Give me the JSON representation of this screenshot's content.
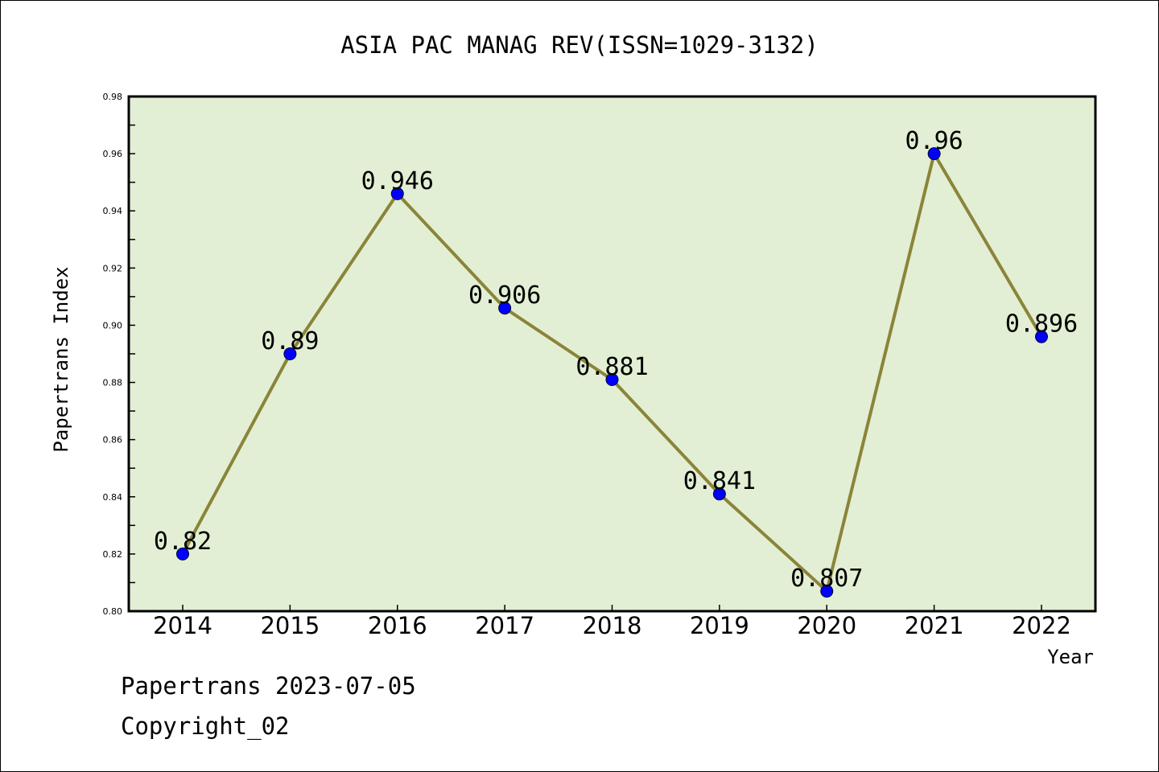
{
  "chart_data": {
    "type": "line",
    "title": "ASIA PAC MANAG REV(ISSN=1029-3132)",
    "xlabel": "Year",
    "ylabel": "Papertrans Index",
    "categories": [
      "2014",
      "2015",
      "2016",
      "2017",
      "2018",
      "2019",
      "2020",
      "2021",
      "2022"
    ],
    "series": [
      {
        "values": [
          0.82,
          0.89,
          0.946,
          0.906,
          0.881,
          0.841,
          0.807,
          0.96,
          0.896
        ],
        "labels": [
          "0.82",
          "0.89",
          "0.946",
          "0.906",
          "0.881",
          "0.841",
          "0.807",
          "0.96",
          "0.896"
        ],
        "line_color": "#8b8439",
        "marker_color": "#0000ff"
      }
    ],
    "ylim": [
      0.8,
      0.98
    ],
    "yticks": [
      "0.80",
      "0.82",
      "0.84",
      "0.86",
      "0.88",
      "0.90",
      "0.92",
      "0.94",
      "0.96",
      "0.98"
    ],
    "plot_background": "#e2efd4",
    "grid": false,
    "legend": "none"
  },
  "footer": {
    "line1": "Papertrans 2023-07-05",
    "line2": "Copyright_02"
  }
}
